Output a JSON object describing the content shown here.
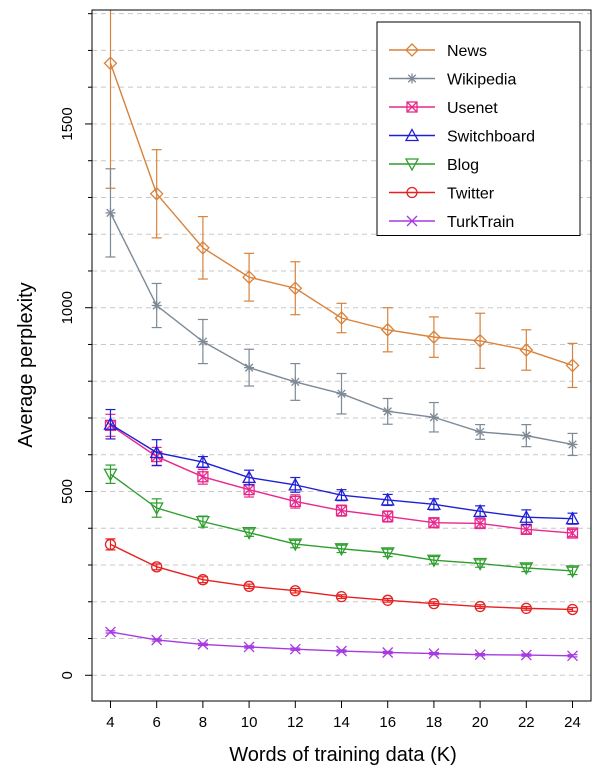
{
  "chart_data": {
    "type": "line",
    "title": "",
    "xlabel": "Words of training data (K)",
    "ylabel": "Average perplexity",
    "xlim": [
      3.2,
      24.8
    ],
    "ylim": [
      -70,
      1810
    ],
    "x": [
      4,
      6,
      8,
      10,
      12,
      14,
      16,
      18,
      20,
      22,
      24
    ],
    "xticks": [
      4,
      6,
      8,
      10,
      12,
      14,
      16,
      18,
      20,
      22,
      24
    ],
    "yticks_labeled": [
      0,
      500,
      1000,
      1500
    ],
    "yticks_minor": [
      100,
      200,
      300,
      400,
      600,
      700,
      800,
      900,
      1100,
      1200,
      1300,
      1400,
      1600,
      1700,
      1800
    ],
    "grid": "horizontal dashed",
    "legend_position": "top-right",
    "series": [
      {
        "name": "News",
        "marker": "diamond",
        "color": "#d9823b",
        "values": [
          1665,
          1310,
          1163,
          1083,
          1053,
          972,
          940,
          920,
          910,
          885,
          843
        ],
        "errors": [
          340,
          120,
          85,
          65,
          72,
          40,
          60,
          55,
          75,
          55,
          60
        ]
      },
      {
        "name": "Wikipedia",
        "marker": "asterisk",
        "color": "#7d8a96",
        "values": [
          1258,
          1006,
          908,
          837,
          798,
          766,
          718,
          702,
          662,
          652,
          628
        ],
        "errors": [
          120,
          60,
          60,
          50,
          50,
          55,
          35,
          40,
          20,
          30,
          30
        ]
      },
      {
        "name": "Usenet",
        "marker": "boxed-x",
        "color": "#e8288c",
        "values": [
          680,
          595,
          540,
          505,
          473,
          448,
          432,
          415,
          413,
          397,
          387
        ],
        "errors": [
          30,
          25,
          20,
          20,
          18,
          15,
          15,
          12,
          12,
          12,
          10
        ]
      },
      {
        "name": "Switchboard",
        "marker": "triangle-up",
        "color": "#1f1fd6",
        "values": [
          683,
          606,
          580,
          538,
          518,
          490,
          477,
          465,
          446,
          430,
          426
        ],
        "errors": [
          40,
          35,
          15,
          20,
          20,
          15,
          15,
          15,
          15,
          20,
          15
        ]
      },
      {
        "name": "Blog",
        "marker": "triangle-down",
        "color": "#2e9e2e",
        "values": [
          547,
          455,
          418,
          388,
          357,
          344,
          333,
          313,
          304,
          292,
          284
        ],
        "errors": [
          25,
          25,
          15,
          10,
          10,
          10,
          10,
          10,
          10,
          10,
          10
        ]
      },
      {
        "name": "Twitter",
        "marker": "circle",
        "color": "#e82020",
        "values": [
          356,
          295,
          260,
          242,
          230,
          214,
          204,
          195,
          187,
          182,
          179
        ],
        "errors": [
          15,
          8,
          8,
          6,
          6,
          5,
          5,
          5,
          5,
          5,
          5
        ]
      },
      {
        "name": "TurkTrain",
        "marker": "x",
        "color": "#a63ae0",
        "values": [
          118,
          96,
          84,
          77,
          71,
          66,
          62,
          59,
          56,
          55,
          53
        ],
        "errors": [
          3,
          3,
          3,
          3,
          3,
          3,
          3,
          3,
          3,
          3,
          3
        ]
      }
    ]
  }
}
